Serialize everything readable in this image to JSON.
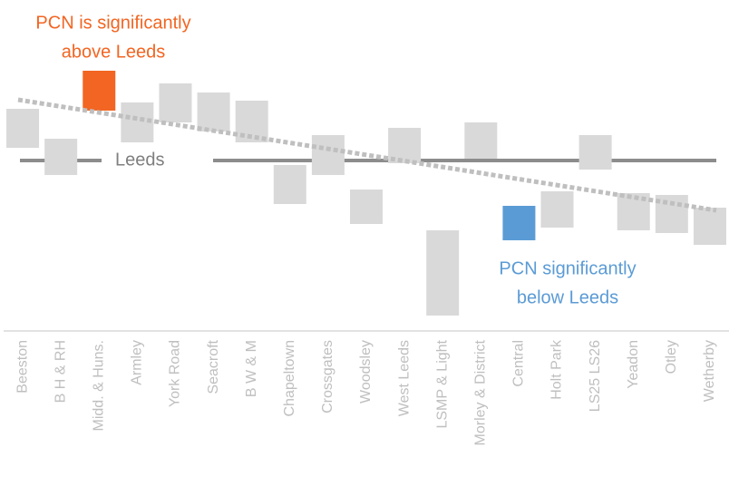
{
  "chart_data": {
    "type": "floating_bar",
    "categories": [
      "Beeston",
      "B H & RH",
      "Midd. & Huns.",
      "Armley",
      "York Road",
      "Seacroft",
      "B W & M",
      "Chapeltown",
      "Crossgates",
      "Woodsley",
      "West Leeds",
      "LSMP & Light",
      "Morley & District",
      "Central",
      "Holt Park",
      "LS25 LS26",
      "Yeadon",
      "Otley",
      "Wetherby"
    ],
    "low": [
      187,
      157,
      228,
      193,
      215,
      205,
      193,
      125,
      157,
      103,
      170,
      2,
      175,
      85,
      99,
      163,
      96,
      93,
      80
    ],
    "high": [
      230,
      197,
      272,
      237,
      258,
      248,
      239,
      168,
      201,
      141,
      209,
      96,
      215,
      123,
      139,
      201,
      137,
      135,
      121
    ],
    "colors": [
      "#d9d9d9",
      "#d9d9d9",
      "#f26522",
      "#d9d9d9",
      "#d9d9d9",
      "#d9d9d9",
      "#d9d9d9",
      "#d9d9d9",
      "#d9d9d9",
      "#d9d9d9",
      "#d9d9d9",
      "#d9d9d9",
      "#d9d9d9",
      "#5b9bd5",
      "#d9d9d9",
      "#d9d9d9",
      "#d9d9d9",
      "#d9d9d9",
      "#d9d9d9"
    ],
    "ylim": [
      0,
      280
    ],
    "reference": {
      "label": "Leeds",
      "value": 173,
      "color": "#8c8c8c"
    },
    "trend": {
      "values": [
        240,
        118
      ],
      "color": "#bfbfbf"
    },
    "annotations": [
      {
        "lines": [
          "PCN is significantly",
          "above Leeds"
        ],
        "color": "#f26522"
      },
      {
        "lines": [
          "PCN significantly",
          "below Leeds"
        ],
        "color": "#5b9bd5"
      }
    ]
  }
}
